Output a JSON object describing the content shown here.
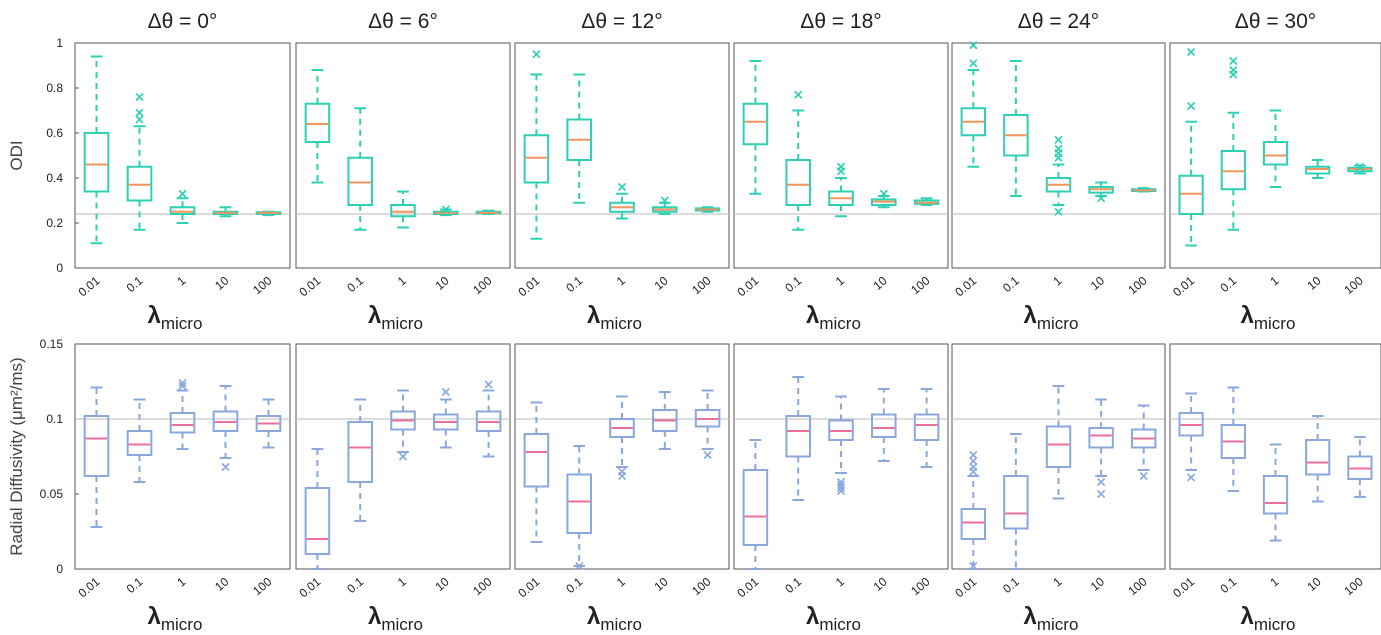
{
  "chart_data": {
    "type": "box",
    "panel_titles": [
      "Δθ = 0°",
      "Δθ = 6°",
      "Δθ = 12°",
      "Δθ = 18°",
      "Δθ = 24°",
      "Δθ = 30°"
    ],
    "categories": [
      "0.01",
      "0.1",
      "1",
      "10",
      "100"
    ],
    "xlabel_symbol": "λ",
    "xlabel_subscript": "micro",
    "colors": {
      "odi_box": "#2ed0b4",
      "odi_median": "#f0955e",
      "rd_box": "#8aa8dc",
      "rd_median": "#ec6e9e",
      "reference_line": "#b8b8b8",
      "frame": "#555555"
    },
    "rows": [
      {
        "ylabel": "ODI",
        "ylim": [
          0,
          1
        ],
        "yticks": [
          "0",
          "0.2",
          "0.4",
          "0.6",
          "0.8",
          "1"
        ],
        "ytick_values": [
          0,
          0.2,
          0.4,
          0.6,
          0.8,
          1
        ],
        "reference": 0.24,
        "panels": [
          [
            {
              "lo": 0.11,
              "q1": 0.34,
              "med": 0.46,
              "q3": 0.6,
              "hi": 0.94,
              "out": []
            },
            {
              "lo": 0.17,
              "q1": 0.3,
              "med": 0.37,
              "q3": 0.45,
              "hi": 0.63,
              "out": [
                0.66,
                0.69,
                0.76
              ]
            },
            {
              "lo": 0.2,
              "q1": 0.24,
              "med": 0.25,
              "q3": 0.27,
              "hi": 0.31,
              "out": [
                0.33
              ]
            },
            {
              "lo": 0.23,
              "q1": 0.24,
              "med": 0.245,
              "q3": 0.25,
              "hi": 0.27,
              "out": []
            },
            {
              "lo": 0.235,
              "q1": 0.24,
              "med": 0.245,
              "q3": 0.248,
              "hi": 0.25,
              "out": []
            }
          ],
          [
            {
              "lo": 0.38,
              "q1": 0.56,
              "med": 0.64,
              "q3": 0.73,
              "hi": 0.88,
              "out": []
            },
            {
              "lo": 0.17,
              "q1": 0.28,
              "med": 0.38,
              "q3": 0.49,
              "hi": 0.71,
              "out": []
            },
            {
              "lo": 0.18,
              "q1": 0.23,
              "med": 0.25,
              "q3": 0.28,
              "hi": 0.34,
              "out": []
            },
            {
              "lo": 0.235,
              "q1": 0.24,
              "med": 0.245,
              "q3": 0.25,
              "hi": 0.26,
              "out": [
                0.26
              ]
            },
            {
              "lo": 0.24,
              "q1": 0.242,
              "med": 0.245,
              "q3": 0.25,
              "hi": 0.255,
              "out": []
            }
          ],
          [
            {
              "lo": 0.13,
              "q1": 0.38,
              "med": 0.49,
              "q3": 0.59,
              "hi": 0.86,
              "out": [
                0.95
              ]
            },
            {
              "lo": 0.29,
              "q1": 0.48,
              "med": 0.57,
              "q3": 0.66,
              "hi": 0.86,
              "out": []
            },
            {
              "lo": 0.22,
              "q1": 0.25,
              "med": 0.27,
              "q3": 0.29,
              "hi": 0.33,
              "out": [
                0.36
              ]
            },
            {
              "lo": 0.24,
              "q1": 0.25,
              "med": 0.26,
              "q3": 0.27,
              "hi": 0.29,
              "out": [
                0.3
              ]
            },
            {
              "lo": 0.25,
              "q1": 0.255,
              "med": 0.26,
              "q3": 0.265,
              "hi": 0.27,
              "out": []
            }
          ],
          [
            {
              "lo": 0.33,
              "q1": 0.55,
              "med": 0.65,
              "q3": 0.73,
              "hi": 0.92,
              "out": []
            },
            {
              "lo": 0.17,
              "q1": 0.28,
              "med": 0.37,
              "q3": 0.48,
              "hi": 0.7,
              "out": [
                0.77
              ]
            },
            {
              "lo": 0.23,
              "q1": 0.28,
              "med": 0.31,
              "q3": 0.34,
              "hi": 0.4,
              "out": [
                0.43,
                0.45
              ]
            },
            {
              "lo": 0.27,
              "q1": 0.28,
              "med": 0.295,
              "q3": 0.305,
              "hi": 0.32,
              "out": [
                0.33
              ]
            },
            {
              "lo": 0.28,
              "q1": 0.285,
              "med": 0.29,
              "q3": 0.3,
              "hi": 0.31,
              "out": []
            }
          ],
          [
            {
              "lo": 0.45,
              "q1": 0.59,
              "med": 0.65,
              "q3": 0.71,
              "hi": 0.88,
              "out": [
                0.91,
                0.99
              ]
            },
            {
              "lo": 0.32,
              "q1": 0.5,
              "med": 0.59,
              "q3": 0.68,
              "hi": 0.92,
              "out": []
            },
            {
              "lo": 0.28,
              "q1": 0.34,
              "med": 0.37,
              "q3": 0.4,
              "hi": 0.46,
              "out": [
                0.25,
                0.49,
                0.51,
                0.53,
                0.57
              ]
            },
            {
              "lo": 0.32,
              "q1": 0.335,
              "med": 0.35,
              "q3": 0.36,
              "hi": 0.38,
              "out": [
                0.31
              ]
            },
            {
              "lo": 0.34,
              "q1": 0.342,
              "med": 0.345,
              "q3": 0.35,
              "hi": 0.355,
              "out": []
            }
          ],
          [
            {
              "lo": 0.1,
              "q1": 0.24,
              "med": 0.33,
              "q3": 0.41,
              "hi": 0.65,
              "out": [
                0.72,
                0.96
              ]
            },
            {
              "lo": 0.17,
              "q1": 0.35,
              "med": 0.43,
              "q3": 0.52,
              "hi": 0.69,
              "out": [
                0.86,
                0.88,
                0.92
              ]
            },
            {
              "lo": 0.36,
              "q1": 0.46,
              "med": 0.5,
              "q3": 0.56,
              "hi": 0.7,
              "out": []
            },
            {
              "lo": 0.4,
              "q1": 0.42,
              "med": 0.44,
              "q3": 0.45,
              "hi": 0.48,
              "out": []
            },
            {
              "lo": 0.42,
              "q1": 0.43,
              "med": 0.44,
              "q3": 0.445,
              "hi": 0.455,
              "out": [
                0.45
              ]
            }
          ]
        ]
      },
      {
        "ylabel": "Radial Diffusivity (μm²/ms)",
        "ylim": [
          0,
          0.15
        ],
        "yticks": [
          "0",
          "0.05",
          "0.1",
          "0.15"
        ],
        "ytick_values": [
          0,
          0.05,
          0.1,
          0.15
        ],
        "reference": 0.1,
        "panels": [
          [
            {
              "lo": 0.028,
              "q1": 0.062,
              "med": 0.087,
              "q3": 0.102,
              "hi": 0.121,
              "out": []
            },
            {
              "lo": 0.058,
              "q1": 0.076,
              "med": 0.083,
              "q3": 0.092,
              "hi": 0.113,
              "out": []
            },
            {
              "lo": 0.08,
              "q1": 0.091,
              "med": 0.096,
              "q3": 0.104,
              "hi": 0.119,
              "out": [
                0.122,
                0.124
              ]
            },
            {
              "lo": 0.074,
              "q1": 0.092,
              "med": 0.098,
              "q3": 0.105,
              "hi": 0.122,
              "out": [
                0.068
              ]
            },
            {
              "lo": 0.081,
              "q1": 0.092,
              "med": 0.097,
              "q3": 0.102,
              "hi": 0.113,
              "out": []
            }
          ],
          [
            {
              "lo": 0.0,
              "q1": 0.01,
              "med": 0.02,
              "q3": 0.054,
              "hi": 0.08,
              "out": []
            },
            {
              "lo": 0.032,
              "q1": 0.058,
              "med": 0.081,
              "q3": 0.098,
              "hi": 0.113,
              "out": []
            },
            {
              "lo": 0.078,
              "q1": 0.093,
              "med": 0.099,
              "q3": 0.105,
              "hi": 0.119,
              "out": [
                0.075
              ]
            },
            {
              "lo": 0.081,
              "q1": 0.093,
              "med": 0.098,
              "q3": 0.103,
              "hi": 0.113,
              "out": [
                0.118
              ]
            },
            {
              "lo": 0.075,
              "q1": 0.092,
              "med": 0.098,
              "q3": 0.105,
              "hi": 0.119,
              "out": [
                0.123
              ]
            }
          ],
          [
            {
              "lo": 0.018,
              "q1": 0.055,
              "med": 0.078,
              "q3": 0.09,
              "hi": 0.111,
              "out": []
            },
            {
              "lo": 0.002,
              "q1": 0.024,
              "med": 0.045,
              "q3": 0.063,
              "hi": 0.082,
              "out": [
                0.002
              ]
            },
            {
              "lo": 0.068,
              "q1": 0.088,
              "med": 0.094,
              "q3": 0.1,
              "hi": 0.115,
              "out": [
                0.062,
                0.065
              ]
            },
            {
              "lo": 0.08,
              "q1": 0.092,
              "med": 0.099,
              "q3": 0.106,
              "hi": 0.118,
              "out": []
            },
            {
              "lo": 0.08,
              "q1": 0.095,
              "med": 0.1,
              "q3": 0.106,
              "hi": 0.119,
              "out": [
                0.076
              ]
            }
          ],
          [
            {
              "lo": 0.0,
              "q1": 0.016,
              "med": 0.035,
              "q3": 0.066,
              "hi": 0.086,
              "out": []
            },
            {
              "lo": 0.046,
              "q1": 0.075,
              "med": 0.092,
              "q3": 0.102,
              "hi": 0.128,
              "out": []
            },
            {
              "lo": 0.064,
              "q1": 0.086,
              "med": 0.092,
              "q3": 0.099,
              "hi": 0.115,
              "out": [
                0.052,
                0.054,
                0.056,
                0.058
              ]
            },
            {
              "lo": 0.072,
              "q1": 0.088,
              "med": 0.094,
              "q3": 0.103,
              "hi": 0.12,
              "out": []
            },
            {
              "lo": 0.068,
              "q1": 0.086,
              "med": 0.096,
              "q3": 0.103,
              "hi": 0.12,
              "out": []
            }
          ],
          [
            {
              "lo": 0.0,
              "q1": 0.02,
              "med": 0.031,
              "q3": 0.04,
              "hi": 0.062,
              "out": [
                0.002,
                0.065,
                0.068,
                0.072,
                0.076
              ]
            },
            {
              "lo": 0.0,
              "q1": 0.027,
              "med": 0.037,
              "q3": 0.062,
              "hi": 0.09,
              "out": []
            },
            {
              "lo": 0.047,
              "q1": 0.068,
              "med": 0.083,
              "q3": 0.095,
              "hi": 0.122,
              "out": []
            },
            {
              "lo": 0.062,
              "q1": 0.081,
              "med": 0.089,
              "q3": 0.094,
              "hi": 0.113,
              "out": [
                0.05,
                0.058
              ]
            },
            {
              "lo": 0.066,
              "q1": 0.081,
              "med": 0.087,
              "q3": 0.093,
              "hi": 0.109,
              "out": [
                0.062
              ]
            }
          ],
          [
            {
              "lo": 0.066,
              "q1": 0.089,
              "med": 0.096,
              "q3": 0.104,
              "hi": 0.117,
              "out": [
                0.061
              ]
            },
            {
              "lo": 0.052,
              "q1": 0.074,
              "med": 0.085,
              "q3": 0.096,
              "hi": 0.121,
              "out": []
            },
            {
              "lo": 0.019,
              "q1": 0.037,
              "med": 0.044,
              "q3": 0.062,
              "hi": 0.083,
              "out": []
            },
            {
              "lo": 0.045,
              "q1": 0.063,
              "med": 0.071,
              "q3": 0.086,
              "hi": 0.102,
              "out": []
            },
            {
              "lo": 0.048,
              "q1": 0.06,
              "med": 0.067,
              "q3": 0.075,
              "hi": 0.088,
              "out": []
            }
          ]
        ]
      }
    ]
  }
}
